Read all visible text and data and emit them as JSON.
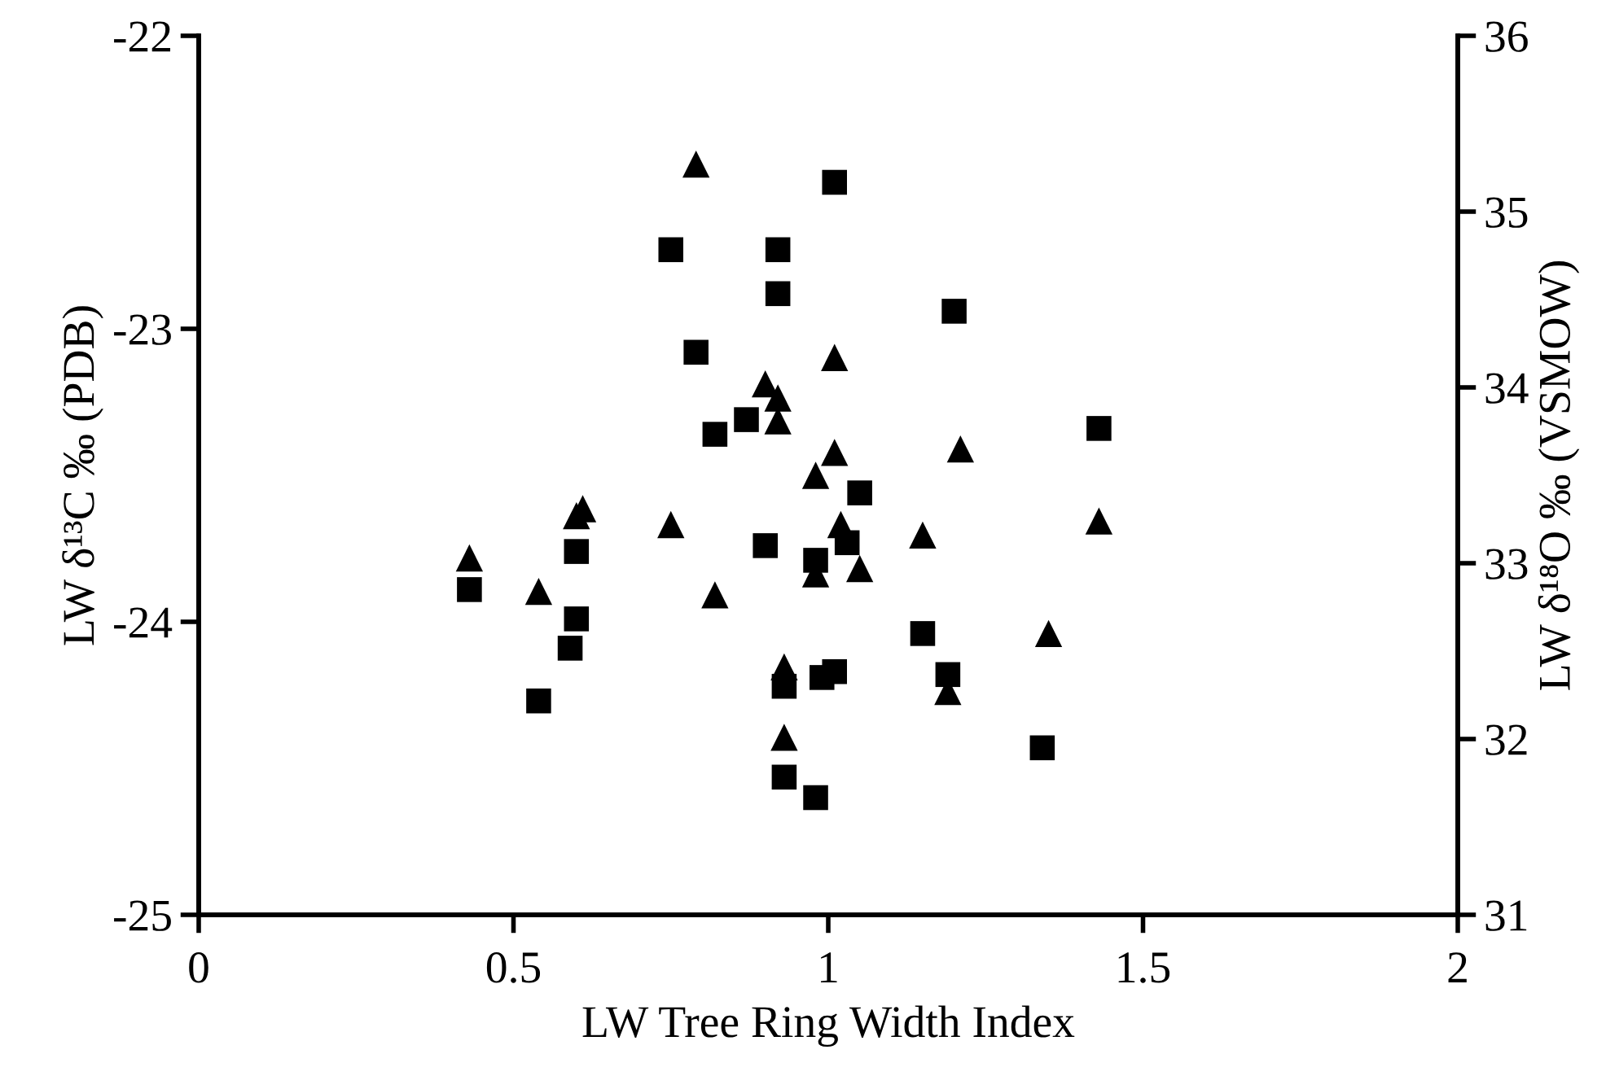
{
  "chart_data": {
    "type": "scatter",
    "xlabel": "LW Tree Ring Width Index",
    "ylabel": "LW δ¹³C ‰ (PDB)",
    "y2label": "LW δ¹⁸O ‰ (VSMOW)",
    "xlim": [
      0,
      2
    ],
    "xticks": [
      0,
      0.5,
      1,
      1.5,
      2
    ],
    "ylim": [
      -25,
      -22
    ],
    "yticks": [
      -25,
      -24,
      -23,
      -22
    ],
    "y2lim": [
      31,
      36
    ],
    "y2ticks": [
      31,
      32,
      33,
      34,
      35,
      36
    ],
    "grid": false,
    "legend": false,
    "series": [
      {
        "color": "#000000",
        "marker": "square",
        "x": [
          0.43,
          0.54,
          0.59,
          0.6,
          0.6,
          0.75,
          0.79,
          0.82,
          0.87,
          0.9,
          0.92,
          0.92,
          0.93,
          0.93,
          0.98,
          0.98,
          0.99,
          1.01,
          1.01,
          1.03,
          1.05,
          1.15,
          1.19,
          1.2,
          1.34,
          1.43
        ],
        "values": [
          -23.89,
          -24.27,
          -24.09,
          -23.76,
          -23.99,
          -22.73,
          -23.08,
          -23.36,
          -23.31,
          -23.74,
          -22.88,
          -22.73,
          -24.22,
          -24.53,
          -23.79,
          -24.6,
          -24.19,
          -22.5,
          -24.17,
          -23.73,
          -23.56,
          -24.04,
          -24.18,
          -22.94,
          -24.43,
          -23.34
        ]
      },
      {
        "color": "#000000",
        "marker": "triangle",
        "axis": "y2",
        "x": [
          0.43,
          0.54,
          0.6,
          0.61,
          0.75,
          0.79,
          0.82,
          0.9,
          0.92,
          0.92,
          0.93,
          0.93,
          0.98,
          0.98,
          1.01,
          1.01,
          1.02,
          1.05,
          1.15,
          1.19,
          1.21,
          1.35,
          1.43
        ],
        "values": [
          33.03,
          32.84,
          33.27,
          33.31,
          33.22,
          35.27,
          32.82,
          34.02,
          33.94,
          33.81,
          32.41,
          32.01,
          33.5,
          32.94,
          33.63,
          34.17,
          33.22,
          32.97,
          33.16,
          32.27,
          33.65,
          32.6,
          33.24
        ]
      }
    ]
  }
}
